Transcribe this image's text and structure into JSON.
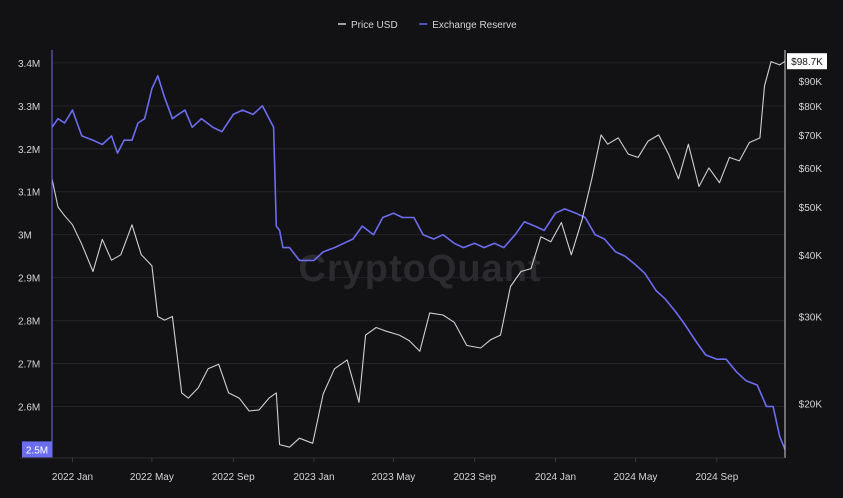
{
  "chart_data": {
    "type": "line",
    "title": "",
    "legend": [
      {
        "name": "Price USD",
        "color": "#cfcfd4"
      },
      {
        "name": "Exchange Reserve",
        "color": "#6b6df0"
      }
    ],
    "legend_position": "top-center",
    "watermark": "CryptoQuant",
    "x_tick_labels": [
      "2022 Jan",
      "2022 May",
      "2022 Sep",
      "2023 Jan",
      "2023 May",
      "2023 Sep",
      "2024 Jan",
      "2024 May",
      "2024 Sep"
    ],
    "x_range": [
      "2021-12-01",
      "2024-12-13"
    ],
    "left_axis": {
      "name": "Exchange Reserve",
      "ylim": [
        2.48,
        3.43
      ],
      "unit": "M",
      "ticks": [
        2.6,
        2.7,
        2.8,
        2.9,
        3.0,
        3.1,
        3.2,
        3.3,
        3.4
      ],
      "tick_labels": [
        "2.6M",
        "2.7M",
        "2.8M",
        "2.9M",
        "3M",
        "3.1M",
        "3.2M",
        "3.3M",
        "3.4M"
      ],
      "current_value_label": "2.5M"
    },
    "right_axis": {
      "name": "Price USD",
      "scale": "log",
      "ylim": [
        15500,
        104000
      ],
      "ticks": [
        20000,
        30000,
        40000,
        50000,
        60000,
        70000,
        80000,
        90000
      ],
      "tick_labels": [
        "$20K",
        "$30K",
        "$40K",
        "$50K",
        "$60K",
        "$70K",
        "$80K",
        "$90K"
      ],
      "current_value_label": "$98.7K"
    },
    "grid": true,
    "series": [
      {
        "name": "Exchange Reserve",
        "axis": "left",
        "x": [
          "2021-12-01",
          "2021-12-10",
          "2021-12-20",
          "2022-01-01",
          "2022-01-15",
          "2022-02-01",
          "2022-02-15",
          "2022-03-01",
          "2022-03-10",
          "2022-03-20",
          "2022-04-01",
          "2022-04-10",
          "2022-04-20",
          "2022-05-01",
          "2022-05-10",
          "2022-05-20",
          "2022-06-01",
          "2022-06-10",
          "2022-06-20",
          "2022-07-01",
          "2022-07-15",
          "2022-08-01",
          "2022-08-15",
          "2022-09-01",
          "2022-09-15",
          "2022-10-01",
          "2022-10-15",
          "2022-11-01",
          "2022-11-05",
          "2022-11-10",
          "2022-11-15",
          "2022-11-25",
          "2022-12-10",
          "2023-01-01",
          "2023-01-15",
          "2023-02-01",
          "2023-02-15",
          "2023-03-01",
          "2023-03-15",
          "2023-04-01",
          "2023-04-15",
          "2023-05-01",
          "2023-05-15",
          "2023-06-01",
          "2023-06-15",
          "2023-07-01",
          "2023-07-15",
          "2023-08-01",
          "2023-08-15",
          "2023-09-01",
          "2023-09-15",
          "2023-10-01",
          "2023-10-15",
          "2023-11-01",
          "2023-11-15",
          "2023-12-01",
          "2023-12-15",
          "2024-01-01",
          "2024-01-15",
          "2024-02-01",
          "2024-02-15",
          "2024-03-01",
          "2024-03-15",
          "2024-04-01",
          "2024-04-15",
          "2024-05-01",
          "2024-05-15",
          "2024-06-01",
          "2024-06-15",
          "2024-07-01",
          "2024-07-15",
          "2024-08-01",
          "2024-08-15",
          "2024-09-01",
          "2024-09-15",
          "2024-10-01",
          "2024-10-15",
          "2024-11-01",
          "2024-11-15",
          "2024-11-25",
          "2024-12-05",
          "2024-12-13"
        ],
        "values": [
          3.25,
          3.27,
          3.26,
          3.29,
          3.23,
          3.22,
          3.21,
          3.23,
          3.19,
          3.22,
          3.22,
          3.26,
          3.27,
          3.34,
          3.37,
          3.32,
          3.27,
          3.28,
          3.29,
          3.25,
          3.27,
          3.25,
          3.24,
          3.28,
          3.29,
          3.28,
          3.3,
          3.25,
          3.02,
          3.01,
          2.97,
          2.97,
          2.94,
          2.94,
          2.96,
          2.97,
          2.98,
          2.99,
          3.02,
          3.0,
          3.04,
          3.05,
          3.04,
          3.04,
          3.0,
          2.99,
          3.0,
          2.98,
          2.97,
          2.98,
          2.97,
          2.98,
          2.97,
          3.0,
          3.03,
          3.02,
          3.01,
          3.05,
          3.06,
          3.05,
          3.04,
          3.0,
          2.99,
          2.96,
          2.95,
          2.93,
          2.91,
          2.87,
          2.85,
          2.82,
          2.79,
          2.75,
          2.72,
          2.71,
          2.71,
          2.68,
          2.66,
          2.65,
          2.6,
          2.6,
          2.53,
          2.5
        ]
      },
      {
        "name": "Price USD",
        "axis": "right",
        "x": [
          "2021-12-01",
          "2021-12-10",
          "2021-12-20",
          "2022-01-01",
          "2022-01-15",
          "2022-02-01",
          "2022-02-15",
          "2022-03-01",
          "2022-03-15",
          "2022-04-01",
          "2022-04-15",
          "2022-05-01",
          "2022-05-10",
          "2022-05-20",
          "2022-06-01",
          "2022-06-15",
          "2022-06-25",
          "2022-07-10",
          "2022-07-25",
          "2022-08-10",
          "2022-08-25",
          "2022-09-10",
          "2022-09-25",
          "2022-10-10",
          "2022-10-25",
          "2022-11-05",
          "2022-11-10",
          "2022-11-25",
          "2022-12-10",
          "2022-12-30",
          "2023-01-15",
          "2023-02-01",
          "2023-02-20",
          "2023-03-10",
          "2023-03-20",
          "2023-04-05",
          "2023-04-20",
          "2023-05-10",
          "2023-05-25",
          "2023-06-10",
          "2023-06-25",
          "2023-07-15",
          "2023-08-01",
          "2023-08-20",
          "2023-09-10",
          "2023-09-25",
          "2023-10-10",
          "2023-10-25",
          "2023-11-10",
          "2023-11-25",
          "2023-12-10",
          "2023-12-25",
          "2024-01-10",
          "2024-01-25",
          "2024-02-10",
          "2024-02-25",
          "2024-03-10",
          "2024-03-20",
          "2024-04-05",
          "2024-04-20",
          "2024-05-05",
          "2024-05-20",
          "2024-06-05",
          "2024-06-20",
          "2024-07-05",
          "2024-07-20",
          "2024-08-05",
          "2024-08-20",
          "2024-09-05",
          "2024-09-20",
          "2024-10-05",
          "2024-10-20",
          "2024-11-05",
          "2024-11-12",
          "2024-11-22",
          "2024-12-05",
          "2024-12-13"
        ],
        "values": [
          57000,
          50000,
          48000,
          46000,
          42000,
          37000,
          43000,
          39000,
          40000,
          46000,
          40000,
          38000,
          30000,
          29500,
          30000,
          21000,
          20500,
          21500,
          23500,
          24000,
          21000,
          20500,
          19300,
          19400,
          20500,
          21000,
          16500,
          16300,
          17000,
          16600,
          20900,
          23500,
          24500,
          20100,
          27500,
          28500,
          28000,
          27500,
          26800,
          25500,
          30500,
          30200,
          29200,
          26200,
          25900,
          26900,
          27500,
          34500,
          37000,
          37500,
          43500,
          42500,
          46500,
          40000,
          47000,
          57000,
          70000,
          67000,
          69000,
          64000,
          63000,
          68000,
          70000,
          64000,
          57000,
          67000,
          55000,
          60000,
          56000,
          63000,
          62000,
          67500,
          69000,
          88000,
          98500,
          97000,
          98700
        ]
      }
    ]
  }
}
